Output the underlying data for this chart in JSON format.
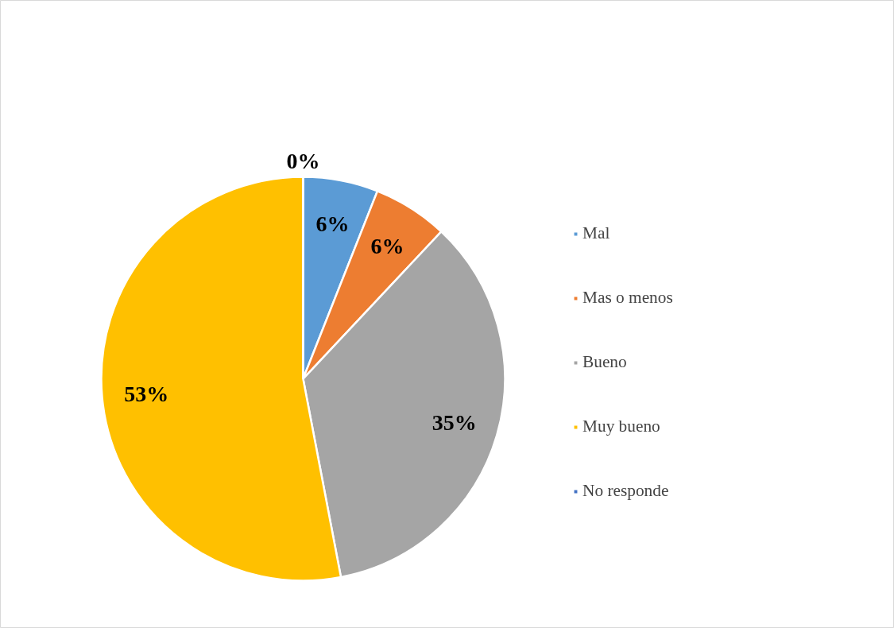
{
  "chart_data": {
    "type": "pie",
    "categories": [
      "Mal",
      "Mas o menos",
      "Bueno",
      "Muy bueno",
      "No responde"
    ],
    "values": [
      6,
      6,
      35,
      53,
      0
    ],
    "colors": [
      "#5b9bd5",
      "#ed7d31",
      "#a5a5a5",
      "#ffc000",
      "#4472c4"
    ],
    "value_labels": [
      "6%",
      "6%",
      "35%",
      "53%",
      "0%"
    ],
    "legend": "right"
  }
}
